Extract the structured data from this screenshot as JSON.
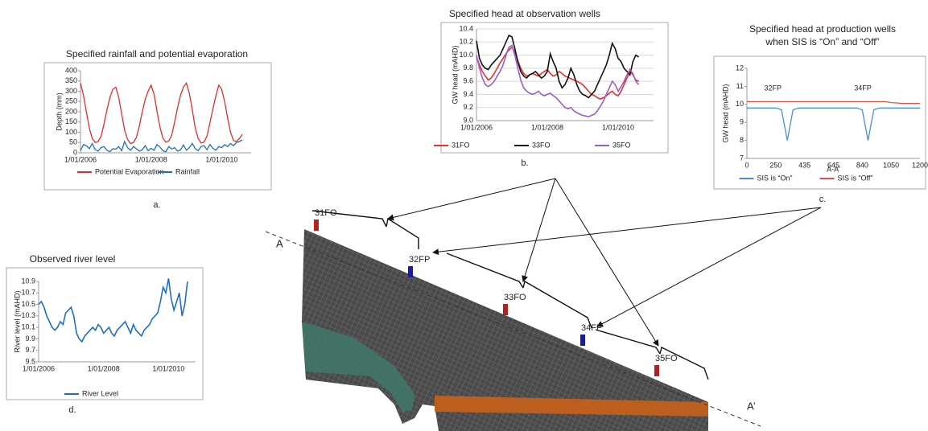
{
  "chart_data": [
    {
      "type": "line",
      "title": [
        "Specified rainfall and potential evaporation"
      ],
      "caption": "a.",
      "ylabel": "Depth (mm)",
      "categories": [
        "1/01/2006",
        null,
        null,
        null,
        null,
        null,
        null,
        null,
        null,
        null,
        null,
        null,
        null,
        null,
        null,
        null,
        null,
        null,
        null,
        null,
        null,
        null,
        null,
        null,
        "1/01/2008",
        null,
        null,
        null,
        null,
        null,
        null,
        null,
        null,
        null,
        null,
        null,
        null,
        null,
        null,
        null,
        null,
        null,
        null,
        null,
        null,
        null,
        null,
        null,
        "1/01/2010",
        null,
        null,
        null,
        null,
        null,
        null,
        null
      ],
      "series": [
        {
          "name": "Potential Evaporation",
          "color": "#d9312b",
          "values": [
            340,
            280,
            200,
            120,
            70,
            50,
            55,
            80,
            140,
            210,
            270,
            310,
            320,
            270,
            190,
            110,
            65,
            45,
            50,
            75,
            130,
            200,
            260,
            300,
            330,
            285,
            205,
            125,
            72,
            52,
            58,
            85,
            150,
            220,
            280,
            320,
            340,
            290,
            210,
            120,
            70,
            48,
            52,
            82,
            145,
            215,
            275,
            330,
            310,
            250,
            170,
            100,
            60,
            55,
            70,
            90
          ]
        },
        {
          "name": "Rainfall",
          "color": "#1f6fc0",
          "values": [
            10,
            40,
            35,
            20,
            45,
            15,
            8,
            25,
            30,
            12,
            5,
            20,
            18,
            30,
            10,
            55,
            25,
            12,
            30,
            20,
            8,
            15,
            35,
            10,
            22,
            12,
            40,
            28,
            10,
            5,
            30,
            18,
            25,
            8,
            14,
            38,
            12,
            25,
            45,
            20,
            10,
            30,
            35,
            15,
            40,
            22,
            12,
            30,
            25,
            40,
            30,
            45,
            35,
            50,
            55,
            62
          ]
        }
      ],
      "ylim": [
        0,
        400
      ],
      "yticks": [
        0,
        50,
        100,
        150,
        200,
        250,
        300,
        350,
        400
      ],
      "grid": false,
      "legend": "bottom"
    },
    {
      "type": "line",
      "title": [
        "Specified head at observation wells"
      ],
      "caption": "b.",
      "ylabel": "GW head (mAHD)",
      "categories": [
        "1/01/2006",
        null,
        null,
        null,
        null,
        null,
        null,
        null,
        null,
        null,
        null,
        null,
        null,
        null,
        null,
        null,
        null,
        null,
        null,
        null,
        null,
        null,
        null,
        null,
        "1/01/2008",
        null,
        null,
        null,
        null,
        null,
        null,
        null,
        null,
        null,
        null,
        null,
        null,
        null,
        null,
        null,
        null,
        null,
        null,
        null,
        null,
        null,
        null,
        null,
        "1/01/2010",
        null,
        null,
        null,
        null,
        null,
        null,
        null
      ],
      "series": [
        {
          "name": "31FO",
          "color": "#e8312b",
          "values": [
            9.98,
            9.85,
            9.75,
            9.68,
            9.62,
            9.65,
            9.72,
            9.8,
            9.88,
            9.95,
            10.02,
            10.08,
            10.12,
            10.05,
            9.92,
            9.8,
            9.72,
            9.68,
            9.7,
            9.72,
            9.7,
            9.68,
            9.72,
            9.75,
            9.78,
            9.72,
            9.68,
            9.7,
            9.75,
            9.72,
            9.68,
            9.66,
            9.64,
            9.62,
            9.6,
            9.58,
            9.55,
            9.5,
            9.45,
            9.4,
            9.38,
            9.35,
            9.33,
            9.35,
            9.38,
            9.42,
            9.45,
            9.4,
            9.38,
            9.45,
            9.55,
            9.65,
            9.75,
            9.7,
            9.62,
            9.6
          ]
        },
        {
          "name": "33FO",
          "color": "#111111",
          "values": [
            10.22,
            9.95,
            9.85,
            9.8,
            9.78,
            9.85,
            9.9,
            9.95,
            10.0,
            10.1,
            10.2,
            10.3,
            10.28,
            10.1,
            9.9,
            9.75,
            9.68,
            9.65,
            9.7,
            9.72,
            9.75,
            9.7,
            9.65,
            9.68,
            9.75,
            10.02,
            9.9,
            9.8,
            9.6,
            9.5,
            9.55,
            9.65,
            9.8,
            9.7,
            9.55,
            9.45,
            9.4,
            9.38,
            9.35,
            9.4,
            9.45,
            9.55,
            9.65,
            9.75,
            9.85,
            10.0,
            10.18,
            10.1,
            9.95,
            9.9,
            9.8,
            9.75,
            9.7,
            9.9,
            10.0,
            9.97
          ]
        },
        {
          "name": "35FO",
          "color": "#9a5fc4",
          "values": [
            10.0,
            9.8,
            9.65,
            9.55,
            9.52,
            9.55,
            9.6,
            9.68,
            9.75,
            9.85,
            10.0,
            10.12,
            10.15,
            10.0,
            9.8,
            9.62,
            9.5,
            9.45,
            9.42,
            9.4,
            9.42,
            9.45,
            9.4,
            9.38,
            9.4,
            9.42,
            9.38,
            9.35,
            9.3,
            9.25,
            9.2,
            9.18,
            9.2,
            9.15,
            9.12,
            9.1,
            9.08,
            9.07,
            9.06,
            9.08,
            9.1,
            9.15,
            9.22,
            9.3,
            9.4,
            9.5,
            9.6,
            9.55,
            9.45,
            9.52,
            9.6,
            9.7,
            9.78,
            9.72,
            9.6,
            9.55
          ]
        }
      ],
      "ylim": [
        9.0,
        10.4
      ],
      "yticks": [
        {
          "value": 9,
          "label": "9.0"
        },
        9.2,
        9.4,
        9.6,
        9.8,
        {
          "value": 10,
          "label": "10.0"
        },
        10.2,
        10.4
      ],
      "grid": true,
      "legend": "bottom"
    },
    {
      "type": "line",
      "title": [
        "Specified head at production wells",
        "when SIS is “On” and “Off”"
      ],
      "caption": "c.",
      "ylabel": "GW head (mAHD)",
      "xlabel": "A-A'",
      "categories": [
        "0",
        null,
        null,
        null,
        null,
        "250",
        null,
        null,
        null,
        null,
        "435",
        null,
        null,
        null,
        null,
        "645",
        null,
        null,
        null,
        null,
        "840",
        null,
        null,
        null,
        null,
        "1050",
        null,
        null,
        null,
        null,
        "1200"
      ],
      "series": [
        {
          "name": "SIS is “On”",
          "color": "#4a8fd6",
          "values": [
            9.8,
            9.8,
            9.8,
            9.8,
            9.8,
            9.8,
            9.7,
            8.0,
            9.7,
            9.8,
            9.8,
            9.8,
            9.8,
            9.8,
            9.8,
            9.8,
            9.8,
            9.8,
            9.8,
            9.8,
            9.7,
            8.0,
            9.7,
            9.8,
            9.8,
            9.8,
            9.8,
            9.8,
            9.8,
            9.8,
            9.8
          ]
        },
        {
          "name": "SIS is “Off”",
          "color": "#d9534f",
          "values": [
            10.15,
            10.15,
            10.15,
            10.15,
            10.15,
            10.15,
            10.15,
            10.15,
            10.15,
            10.15,
            10.15,
            10.15,
            10.15,
            10.15,
            10.15,
            10.15,
            10.15,
            10.15,
            10.15,
            10.15,
            10.15,
            10.15,
            10.15,
            10.15,
            10.15,
            10.1,
            10.08,
            10.05,
            10.05,
            10.05,
            10.05
          ]
        }
      ],
      "annotations": [
        "32FP",
        "34FP"
      ],
      "ylim": [
        7,
        12
      ],
      "yticks": [
        7,
        8,
        9,
        10,
        11,
        12
      ],
      "grid": false,
      "legend": "bottom"
    },
    {
      "type": "line",
      "title": [
        "Observed river level"
      ],
      "caption": "d.",
      "ylabel": "River level (mAHD)",
      "categories": [
        "1/01/2006",
        null,
        null,
        null,
        null,
        null,
        null,
        null,
        null,
        null,
        null,
        null,
        null,
        null,
        null,
        null,
        null,
        null,
        null,
        null,
        null,
        null,
        null,
        null,
        "1/01/2008",
        null,
        null,
        null,
        null,
        null,
        null,
        null,
        null,
        null,
        null,
        null,
        null,
        null,
        null,
        null,
        null,
        null,
        null,
        null,
        null,
        null,
        null,
        null,
        "1/01/2010",
        null,
        null,
        null,
        null,
        null,
        null,
        null
      ],
      "series": [
        {
          "name": "River Level",
          "color": "#1f6fc0",
          "values": [
            10.5,
            10.55,
            10.45,
            10.3,
            10.2,
            10.1,
            10.05,
            10.1,
            10.2,
            10.15,
            10.35,
            10.4,
            10.45,
            10.3,
            10.0,
            9.9,
            9.85,
            9.95,
            10.0,
            10.05,
            10.1,
            10.05,
            10.15,
            10.1,
            10.0,
            10.05,
            10.1,
            10.0,
            9.95,
            10.05,
            10.1,
            10.15,
            10.2,
            10.1,
            10.0,
            10.15,
            10.05,
            10.0,
            9.95,
            10.05,
            10.1,
            10.15,
            10.25,
            10.3,
            10.35,
            10.55,
            10.8,
            10.7,
            10.95,
            10.6,
            10.4,
            10.55,
            10.7,
            10.3,
            10.5,
            10.9
          ]
        }
      ],
      "ylim": [
        9.5,
        10.9
      ],
      "yticks": [
        9.5,
        9.7,
        9.9,
        10.1,
        10.3,
        10.5,
        10.7,
        10.9
      ],
      "grid": false,
      "legend": "bottom"
    }
  ],
  "diagram": {
    "section_start": "A",
    "section_end": "A’",
    "wells": [
      {
        "label": "31FO",
        "color": "#b22222"
      },
      {
        "label": "32FP",
        "color": "#1a1aa8"
      },
      {
        "label": "33FO",
        "color": "#b22222"
      },
      {
        "label": "34FP",
        "color": "#1a1aa8"
      },
      {
        "label": "35FO",
        "color": "#b22222"
      }
    ]
  }
}
